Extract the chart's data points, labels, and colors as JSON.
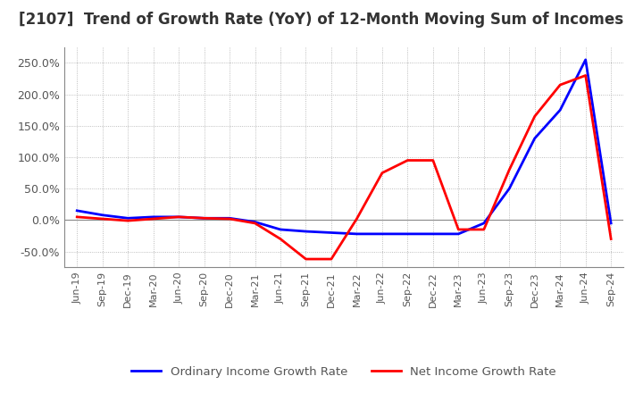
{
  "title": "[2107]  Trend of Growth Rate (YoY) of 12-Month Moving Sum of Incomes",
  "title_fontsize": 12,
  "title_color": "#333333",
  "background_color": "#ffffff",
  "grid_color": "#aaaaaa",
  "ylim": [
    -75,
    275
  ],
  "yticks": [
    -50.0,
    0.0,
    50.0,
    100.0,
    150.0,
    200.0,
    250.0
  ],
  "legend_labels": [
    "Ordinary Income Growth Rate",
    "Net Income Growth Rate"
  ],
  "legend_colors": [
    "#0000ff",
    "#ff0000"
  ],
  "x_labels": [
    "Jun-19",
    "Sep-19",
    "Dec-19",
    "Mar-20",
    "Jun-20",
    "Sep-20",
    "Dec-20",
    "Mar-21",
    "Jun-21",
    "Sep-21",
    "Dec-21",
    "Mar-22",
    "Jun-22",
    "Sep-22",
    "Dec-22",
    "Mar-23",
    "Jun-23",
    "Sep-23",
    "Dec-23",
    "Mar-24",
    "Jun-24",
    "Sep-24"
  ],
  "ordinary_income": [
    15.0,
    8.0,
    3.0,
    5.0,
    5.0,
    3.0,
    3.0,
    -3.0,
    -15.0,
    -18.0,
    -20.0,
    -22.0,
    -22.0,
    -22.0,
    -22.0,
    -22.0,
    -5.0,
    50.0,
    130.0,
    175.0,
    255.0,
    -5.0
  ],
  "net_income": [
    5.0,
    2.0,
    -1.0,
    2.0,
    5.0,
    3.0,
    2.0,
    -5.0,
    -30.0,
    -62.0,
    -62.0,
    2.0,
    75.0,
    95.0,
    95.0,
    -15.0,
    -15.0,
    80.0,
    165.0,
    215.0,
    230.0,
    -30.0
  ]
}
